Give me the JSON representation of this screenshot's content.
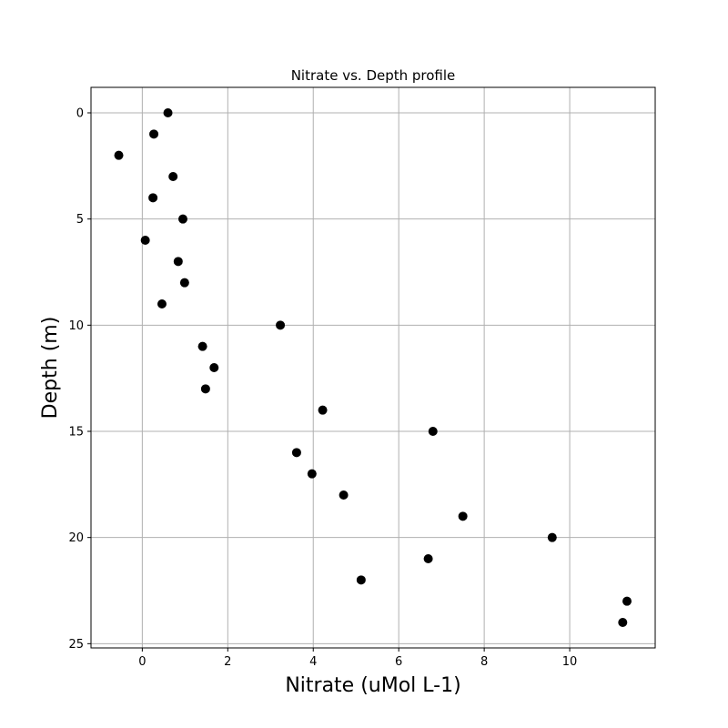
{
  "chart_data": {
    "type": "scatter",
    "title": "Nitrate vs. Depth profile",
    "xlabel": "Nitrate (uMol L-1)",
    "ylabel": "Depth (m)",
    "xlim": [
      -1.2,
      12.0
    ],
    "ylim": [
      25.2,
      -1.2
    ],
    "y_inverted": true,
    "grid": true,
    "marker_color": "#000000",
    "x_ticks": [
      0,
      2,
      4,
      6,
      8,
      10
    ],
    "x_tick_labels": [
      "0",
      "2",
      "4",
      "6",
      "8",
      "10"
    ],
    "y_ticks": [
      0,
      5,
      10,
      15,
      20,
      25
    ],
    "y_tick_labels": [
      "0",
      "5",
      "10",
      "15",
      "20",
      "25"
    ],
    "series": [
      {
        "points": [
          {
            "x": 0.6,
            "y": 0
          },
          {
            "x": 0.27,
            "y": 1
          },
          {
            "x": -0.55,
            "y": 2
          },
          {
            "x": 0.72,
            "y": 3
          },
          {
            "x": 0.25,
            "y": 4
          },
          {
            "x": 0.95,
            "y": 5
          },
          {
            "x": 0.07,
            "y": 6
          },
          {
            "x": 0.84,
            "y": 7
          },
          {
            "x": 0.99,
            "y": 8
          },
          {
            "x": 0.46,
            "y": 9
          },
          {
            "x": 3.23,
            "y": 10
          },
          {
            "x": 1.41,
            "y": 11
          },
          {
            "x": 1.68,
            "y": 12
          },
          {
            "x": 1.48,
            "y": 13
          },
          {
            "x": 4.22,
            "y": 14
          },
          {
            "x": 6.8,
            "y": 15
          },
          {
            "x": 3.61,
            "y": 16
          },
          {
            "x": 3.97,
            "y": 17
          },
          {
            "x": 4.71,
            "y": 18
          },
          {
            "x": 7.5,
            "y": 19
          },
          {
            "x": 9.59,
            "y": 20
          },
          {
            "x": 6.69,
            "y": 21
          },
          {
            "x": 5.12,
            "y": 22
          },
          {
            "x": 11.34,
            "y": 23
          },
          {
            "x": 11.24,
            "y": 24
          }
        ]
      }
    ]
  }
}
